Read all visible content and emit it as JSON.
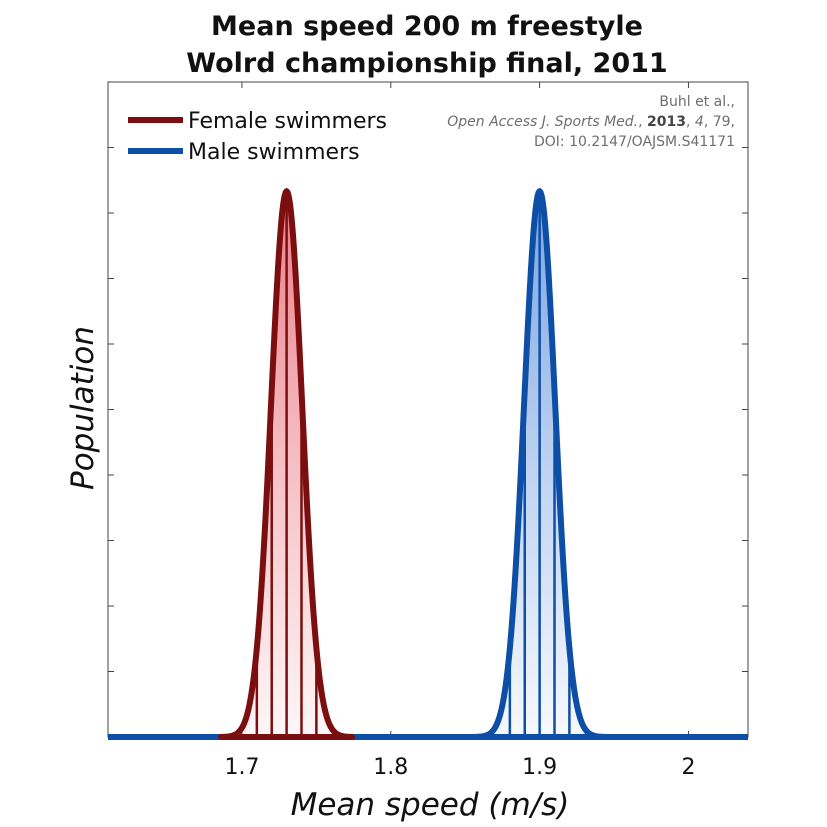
{
  "chart_data": {
    "type": "area",
    "title": [
      "Mean speed 200 m freestyle",
      "Wolrd championship final, 2011"
    ],
    "xlabel": "Mean speed (m/s)",
    "ylabel": "Population",
    "xlim": [
      1.61,
      2.04
    ],
    "ylim": [
      0,
      1.2
    ],
    "x_ticks": [
      1.7,
      1.8,
      1.9,
      2.0
    ],
    "x_tick_labels": [
      "1.7",
      "1.8",
      "1.9",
      "2"
    ],
    "y_tick_count": 10,
    "y_tick_labels_shown": false,
    "grid": false,
    "legend_position": "top-left",
    "series": [
      {
        "name": "Female swimmers",
        "color": "#7b0f0f",
        "fill_color": "#e03040",
        "distribution": "normal",
        "mean": 1.73,
        "sd": 0.0105,
        "peak": 1.0,
        "swimmer_speeds": [
          1.71,
          1.72,
          1.73,
          1.74,
          1.75
        ]
      },
      {
        "name": "Male swimmers",
        "color": "#0d4ea6",
        "fill_color": "#2a6cd0",
        "distribution": "normal",
        "mean": 1.9,
        "sd": 0.0105,
        "peak": 1.0,
        "swimmer_speeds": [
          1.88,
          1.89,
          1.9,
          1.91,
          1.92
        ]
      }
    ],
    "citation": {
      "authors": "Buhl et al.,",
      "journal": "Open Access J. Sports Med.",
      "year": "2013",
      "volume": "4",
      "page": "79,",
      "doi": "DOI: 10.2147/OAJSM.S41171"
    }
  }
}
